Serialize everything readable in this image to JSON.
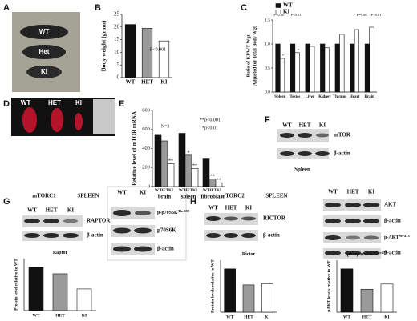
{
  "panels": {
    "labels": [
      "A",
      "B",
      "C",
      "D",
      "E",
      "F",
      "G",
      "H"
    ],
    "A": {
      "mice": [
        "WT",
        "Het",
        "KI"
      ]
    },
    "D": {
      "organs": [
        "WT",
        "HET",
        "KI"
      ]
    },
    "F": {
      "lanes": [
        "WT",
        "HET",
        "KI"
      ],
      "bands": [
        "mTOR",
        "β-actin"
      ],
      "tissue": "Spleen"
    },
    "G": {
      "complex": "mTORC1",
      "tissue": "SPLEEN",
      "lanes": [
        "WT",
        "HET",
        "KI"
      ],
      "bands": [
        "RAPTOR",
        "β-actin"
      ],
      "lanes2": [
        "WT",
        "KI"
      ],
      "bands2": [
        {
          "text": "p-p70S6K",
          "sup": "Thr389"
        },
        "p70S6K",
        "β-actin"
      ]
    },
    "H": {
      "complex": "mTORC2",
      "tissue": "SPLEEN",
      "lanes": [
        "WT",
        "HET",
        "KI"
      ],
      "bands": [
        "RICTOR",
        "β-actin"
      ],
      "lanes2": [
        "WT",
        "HET",
        "KI"
      ],
      "bands2": [
        "AKT",
        "β-actin",
        {
          "text": "p-AKT",
          "sup": "Ser473"
        },
        "β-actin"
      ]
    }
  },
  "chart_data": [
    {
      "type": "bar",
      "ylabel": [
        "Body weight (gram)"
      ],
      "categories": [
        "WT",
        "HET",
        "KI"
      ],
      "values": [
        21,
        19.5,
        14.5
      ],
      "colors": [
        "#111111",
        "#9a9a9a",
        "#ffffff"
      ],
      "ylim": [
        0,
        25
      ],
      "yticks": [
        0,
        5,
        10,
        15,
        20,
        25
      ],
      "annotations": [
        "P<0.001"
      ]
    },
    {
      "type": "bar",
      "ylabel": [
        "Ratio of KI/WT Wgt",
        "Adjusted for Total Body Wgt"
      ],
      "categories": [
        "Spleen",
        "Testes",
        "Liver",
        "Kidney",
        "Thymus",
        "Heart",
        "Brain"
      ],
      "series": [
        {
          "name": "WT",
          "color": "#111111",
          "values": [
            1,
            1,
            1,
            1,
            1,
            1,
            1
          ]
        },
        {
          "name": "KI",
          "color": "#ffffff",
          "values": [
            0.7,
            0.82,
            0.95,
            0.92,
            1.2,
            1.3,
            1.35
          ]
        }
      ],
      "ylim": [
        0,
        1.5
      ],
      "yticks": [
        {
          "value": 0,
          "label": "0.0"
        },
        {
          "value": 0.5,
          "label": "0.5"
        },
        {
          "value": 1,
          "label": "1.0"
        },
        {
          "value": 1.5,
          "label": "1.5"
        }
      ],
      "legend": "upper left",
      "annotations": [
        "P<0.001",
        "P<0.01",
        "P=0.06",
        "P<0.01",
        "*",
        "*"
      ]
    },
    {
      "type": "bar",
      "ylabel": [
        "Relative level of mTOR mRNA"
      ],
      "categories": [
        "brain",
        "spleen",
        "fibroblast"
      ],
      "series": [
        {
          "name": "WT",
          "color": "#111111",
          "values": [
            540,
            560,
            290
          ]
        },
        {
          "name": "HET",
          "color": "#9a9a9a",
          "values": [
            480,
            330,
            80
          ]
        },
        {
          "name": "KI",
          "color": "#ffffff",
          "values": [
            240,
            190,
            40
          ]
        }
      ],
      "ylim": [
        0,
        800
      ],
      "yticks": [
        0,
        200,
        400,
        600,
        800
      ],
      "annotations": [
        "N=3",
        "**p<0.001",
        "*p<0.01",
        "**",
        "*",
        "**",
        "**",
        "**"
      ]
    },
    {
      "type": "bar",
      "title": "Raptor",
      "ylabel": [
        "Protein level relative to WT"
      ],
      "categories": [
        "WT",
        "HET",
        "KI"
      ],
      "values": [
        1.0,
        0.85,
        0.5
      ],
      "colors": [
        "#111111",
        "#9a9a9a",
        "#ffffff"
      ],
      "ylim": [
        0,
        1.2
      ]
    },
    {
      "type": "bar",
      "title": "Rictor",
      "ylabel": [
        "Protein levels relative to WT"
      ],
      "categories": [
        "WT",
        "HET",
        "KI"
      ],
      "values": [
        1.0,
        0.63,
        0.66
      ],
      "colors": [
        "#111111",
        "#9a9a9a",
        "#ffffff"
      ],
      "ylim": [
        0,
        1.2
      ]
    },
    {
      "type": "bar",
      "title": "phospho-AKT",
      "title_sup": "ser473",
      "ylabel": [
        "pAKT levels relative to WT"
      ],
      "categories": [
        "WT",
        "HET",
        "KI"
      ],
      "values": [
        1.0,
        0.53,
        0.65
      ],
      "colors": [
        "#111111",
        "#9a9a9a",
        "#ffffff"
      ],
      "ylim": [
        0,
        1.2
      ]
    }
  ]
}
